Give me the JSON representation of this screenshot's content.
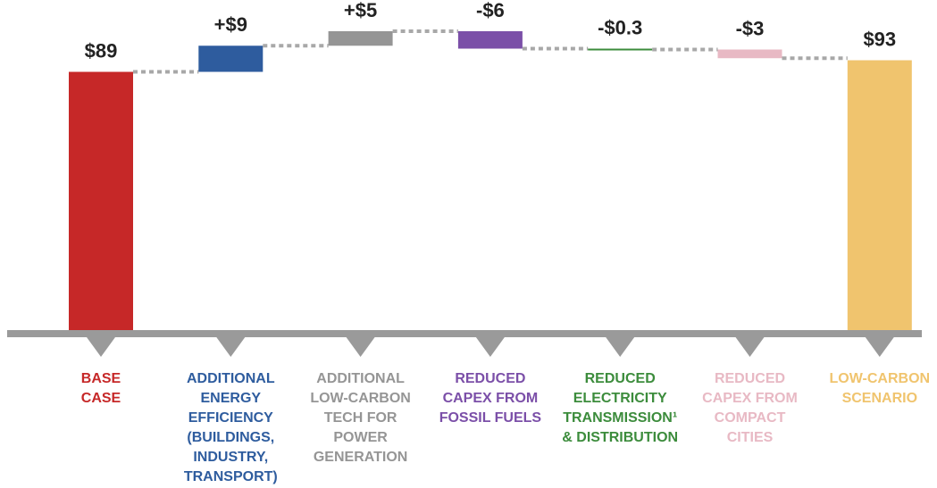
{
  "chart_data": {
    "type": "waterfall",
    "categories": [
      [
        "BASE",
        "CASE"
      ],
      [
        "ADDITIONAL",
        "ENERGY",
        "EFFICIENCY",
        "(BUILDINGS,",
        "INDUSTRY,",
        "TRANSPORT)"
      ],
      [
        "ADDITIONAL",
        "LOW-CARBON",
        "TECH FOR",
        "POWER",
        "GENERATION"
      ],
      [
        "REDUCED",
        "CAPEX FROM",
        "FOSSIL FUELS"
      ],
      [
        "REDUCED",
        "ELECTRICITY",
        "TRANSMISSION¹",
        "& DISTRIBUTION"
      ],
      [
        "REDUCED",
        "CAPEX FROM",
        "COMPACT",
        "CITIES"
      ],
      [
        "LOW-CARBON",
        "SCENARIO"
      ]
    ],
    "values": [
      89,
      9,
      5,
      -6,
      -0.3,
      -3,
      93
    ],
    "value_labels": [
      "$89",
      "+$9",
      "+$5",
      "-$6",
      "-$0.3",
      "-$3",
      "$93"
    ],
    "is_total": [
      true,
      false,
      false,
      false,
      false,
      false,
      true
    ],
    "colors": [
      "#c62828",
      "#2e5c9e",
      "#959595",
      "#7b4fa8",
      "#3c8c3c",
      "#e8b9c4",
      "#f0c46e"
    ]
  }
}
